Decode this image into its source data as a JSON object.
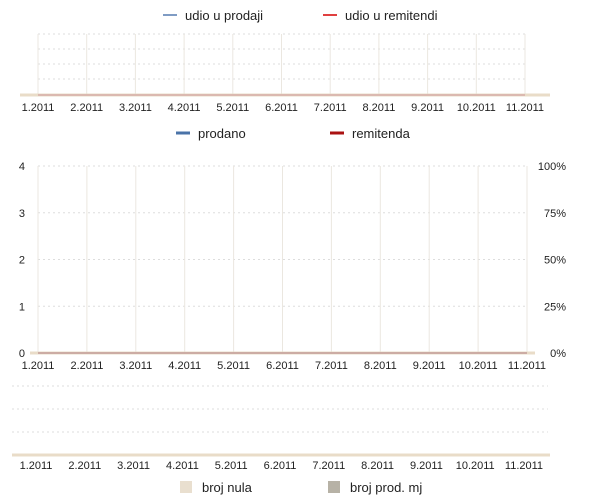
{
  "chart_data": [
    {
      "type": "line",
      "x": [
        "1.2011",
        "2.2011",
        "3.2011",
        "4.2011",
        "5.2011",
        "6.2011",
        "7.2011",
        "8.2011",
        "9.2011",
        "10.2011",
        "11.2011"
      ],
      "series": [
        {
          "name": "udio u prodaji",
          "values": [
            0,
            0,
            0,
            0,
            0,
            0,
            0,
            0,
            0,
            0,
            0
          ],
          "color": "#7f9cc4"
        },
        {
          "name": "udio u remitendi",
          "values": [
            0,
            0,
            0,
            0,
            0,
            0,
            0,
            0,
            0,
            0,
            0
          ],
          "color": "#e04040"
        }
      ],
      "legend_position": "top-center",
      "grid": true
    },
    {
      "type": "line",
      "x": [
        "1.2011",
        "2.2011",
        "3.2011",
        "4.2011",
        "5.2011",
        "6.2011",
        "7.2011",
        "8.2011",
        "9.2011",
        "10.2011",
        "11.2011"
      ],
      "series": [
        {
          "name": "prodano",
          "values": [
            0,
            0,
            0,
            0,
            0,
            0,
            0,
            0,
            0,
            0,
            0
          ],
          "color": "#4a73a8"
        },
        {
          "name": "remitenda",
          "values": [
            0,
            0,
            0,
            0,
            0,
            0,
            0,
            0,
            0,
            0,
            0
          ],
          "color": "#aa1111"
        }
      ],
      "ylim": [
        0,
        4
      ],
      "y_ticks": [
        "0",
        "1",
        "2",
        "3",
        "4"
      ],
      "y2_ticks": [
        "0%",
        "25%",
        "50%",
        "75%",
        "100%"
      ],
      "legend_position": "top-center",
      "grid": true
    },
    {
      "type": "bar",
      "x": [
        "1.2011",
        "2.2011",
        "3.2011",
        "4.2011",
        "5.2011",
        "6.2011",
        "7.2011",
        "8.2011",
        "9.2011",
        "10.2011",
        "11.2011"
      ],
      "series": [
        {
          "name": "broj nula",
          "values": [
            0,
            0,
            0,
            0,
            0,
            0,
            0,
            0,
            0,
            0,
            0
          ],
          "color": "#e9dfcf"
        },
        {
          "name": "broj prod. mj",
          "values": [
            0,
            0,
            0,
            0,
            0,
            0,
            0,
            0,
            0,
            0,
            0
          ],
          "color": "#b7b2a6"
        }
      ],
      "legend_position": "bottom-center",
      "grid": true
    }
  ]
}
